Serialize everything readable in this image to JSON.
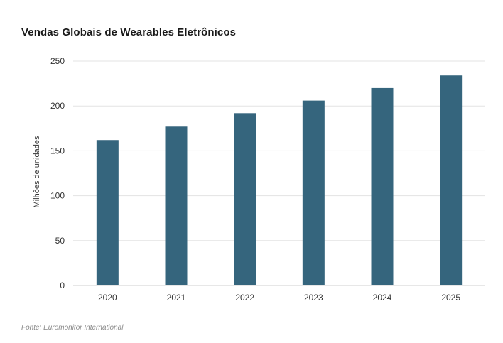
{
  "chart_data": {
    "type": "bar",
    "title": "Vendas Globais de Wearables Eletrônicos",
    "xlabel": "",
    "ylabel": "Milhões de unidades",
    "categories": [
      "2020",
      "2021",
      "2022",
      "2023",
      "2024",
      "2025"
    ],
    "values": [
      162,
      177,
      192,
      206,
      220,
      234
    ],
    "ylim": [
      0,
      250
    ],
    "yticks": [
      0,
      50,
      100,
      150,
      200,
      250
    ],
    "grid": true,
    "legend": "none",
    "bar_color": "#35657d",
    "grid_color": "#e3e3e3"
  },
  "source": "Fonte: Euromonitor International"
}
